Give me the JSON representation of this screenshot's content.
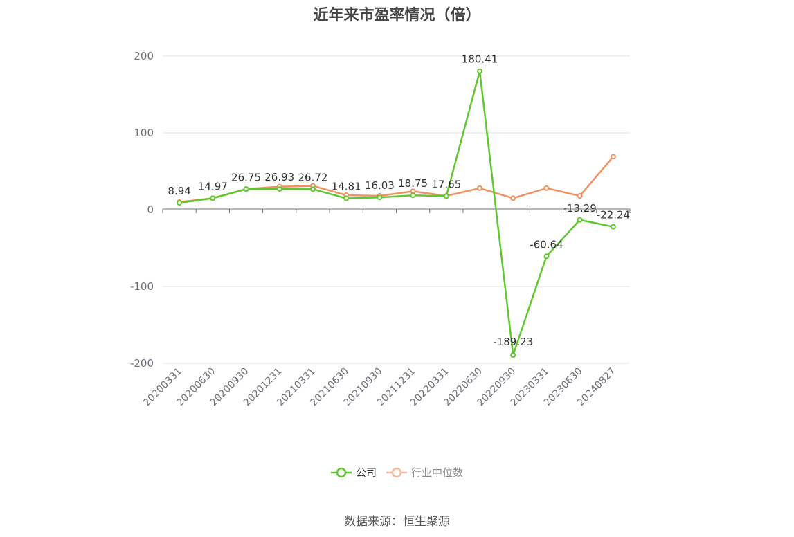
{
  "chart_data": {
    "type": "line",
    "title": "近年来市盈率情况（倍）",
    "categories": [
      "20200331",
      "20200630",
      "20200930",
      "20201231",
      "20210331",
      "20210630",
      "20210930",
      "20211231",
      "20220331",
      "20220630",
      "20220930",
      "20230331",
      "20230630",
      "20240827"
    ],
    "series": [
      {
        "name": "公司",
        "color": "#5ec72e",
        "values": [
          8.94,
          14.97,
          26.75,
          26.93,
          26.72,
          14.81,
          16.03,
          18.75,
          17.65,
          180.41,
          -189.23,
          -60.64,
          -13.29,
          -22.24
        ],
        "labels": [
          "8.94",
          "14.97",
          "26.75",
          "26.93",
          "26.72",
          "14.81",
          "16.03",
          "18.75",
          "17.65",
          "180.41",
          "-189.23",
          "-60.64",
          "-13.29",
          "-22.24"
        ]
      },
      {
        "name": "行业中位数",
        "color": "#f0925f",
        "values": [
          10,
          15,
          27,
          30,
          31,
          19,
          18,
          24,
          18,
          28,
          15,
          28,
          18,
          69
        ]
      }
    ],
    "ylim": [
      -200,
      200
    ],
    "yticks": [
      -200,
      -100,
      0,
      100,
      200
    ],
    "grid": true,
    "legend": "bottom-center"
  },
  "legend_colors": {
    "company": "#5ec72e",
    "industry": "#f0925f"
  },
  "source": "数据来源：恒生聚源"
}
